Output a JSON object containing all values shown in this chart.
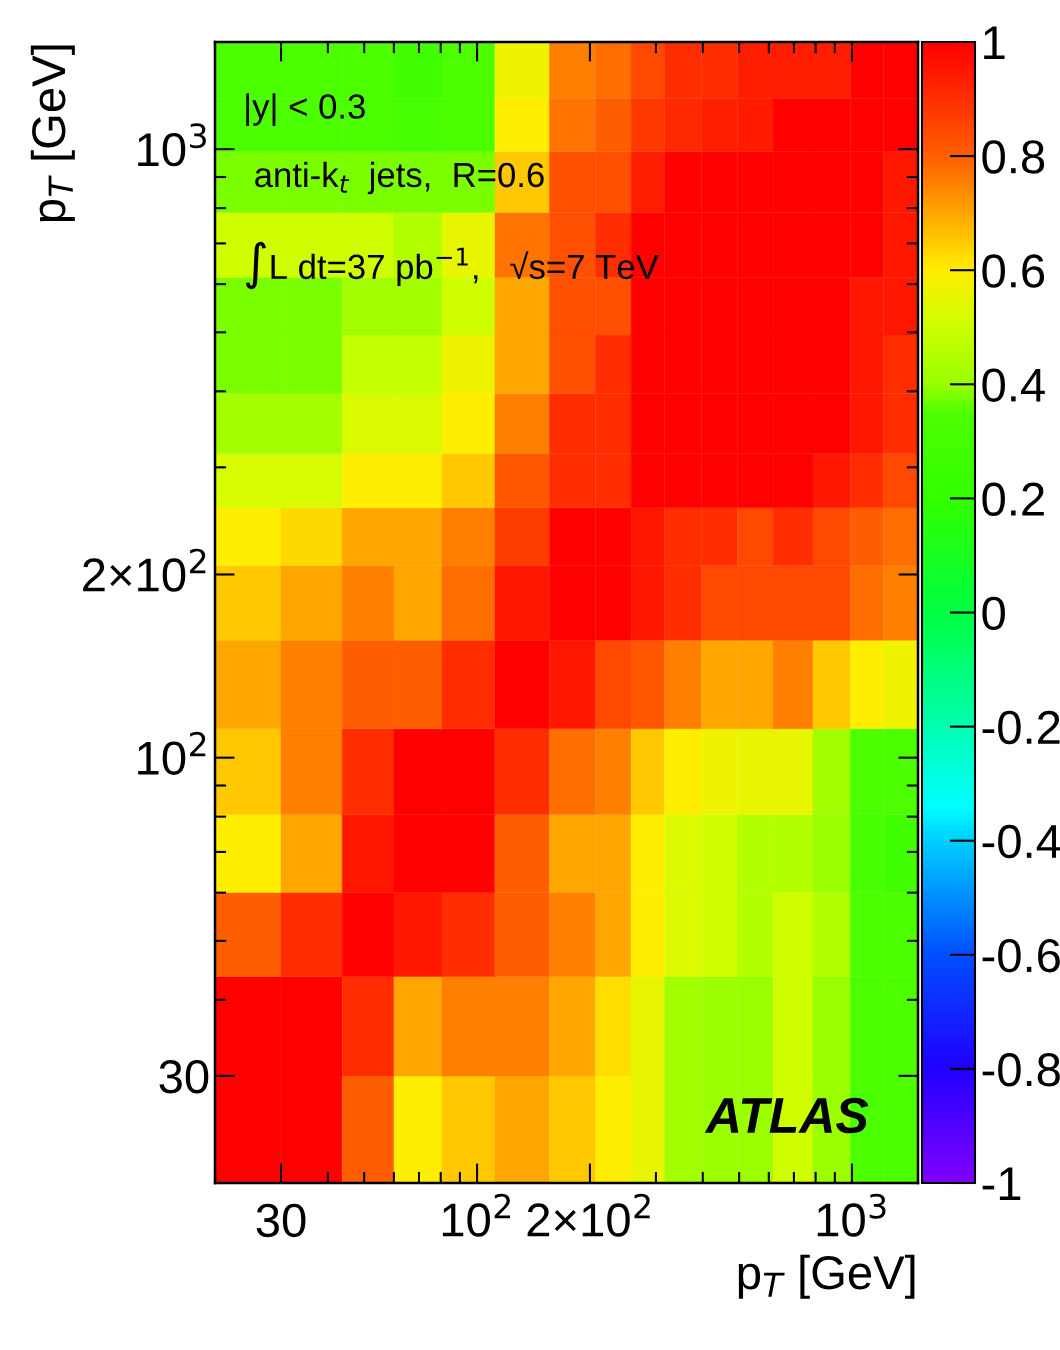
{
  "chart_data": {
    "type": "heatmap",
    "x": [
      24.5,
      36.7,
      52,
      69.3,
      93.8,
      132.7,
      183.3,
      233.6,
      283.9,
      352.1,
      447.2,
      547.7,
      692.8,
      894.4,
      1095.4,
      1341.6
    ],
    "y": [
      1341.6,
      1095.4,
      894.4,
      692.8,
      547.7,
      447.2,
      352.1,
      283.9,
      233.6,
      183.3,
      132.7,
      93.8,
      69.3,
      52,
      36.7,
      24.5
    ],
    "cells": [
      [
        0.35,
        0.35,
        0.35,
        0.28,
        0.35,
        0.57,
        0.75,
        0.78,
        0.85,
        0.9,
        0.9,
        0.93,
        0.93,
        0.93,
        1.0,
        1.0
      ],
      [
        0.35,
        0.35,
        0.35,
        0.32,
        0.35,
        0.6,
        0.77,
        0.8,
        0.88,
        0.91,
        0.93,
        0.94,
        1.0,
        1.0,
        1.0,
        1.0
      ],
      [
        0.38,
        0.38,
        0.38,
        0.38,
        0.38,
        0.65,
        0.83,
        0.83,
        0.93,
        1.0,
        1.0,
        1.0,
        1.0,
        1.0,
        1.0,
        0.95
      ],
      [
        0.5,
        0.5,
        0.5,
        0.45,
        0.55,
        0.77,
        0.83,
        0.9,
        1.0,
        1.0,
        1.0,
        1.0,
        1.0,
        1.0,
        1.0,
        0.95
      ],
      [
        0.38,
        0.38,
        0.42,
        0.42,
        0.5,
        0.7,
        0.83,
        0.83,
        1.0,
        1.0,
        1.0,
        1.0,
        1.0,
        1.0,
        0.95,
        0.95
      ],
      [
        0.38,
        0.38,
        0.48,
        0.48,
        0.57,
        0.7,
        0.83,
        0.9,
        1.0,
        1.0,
        1.0,
        1.0,
        1.0,
        1.0,
        0.95,
        0.9
      ],
      [
        0.42,
        0.42,
        0.53,
        0.53,
        0.6,
        0.75,
        0.9,
        0.9,
        1.0,
        1.0,
        1.0,
        1.0,
        1.0,
        1.0,
        0.95,
        0.9
      ],
      [
        0.52,
        0.52,
        0.6,
        0.6,
        0.65,
        0.82,
        0.9,
        0.9,
        1.0,
        1.0,
        1.0,
        1.0,
        1.0,
        0.95,
        0.9,
        0.85
      ],
      [
        0.6,
        0.63,
        0.7,
        0.7,
        0.75,
        0.87,
        1.0,
        1.0,
        0.95,
        0.9,
        0.9,
        0.85,
        0.9,
        0.85,
        0.8,
        0.78
      ],
      [
        0.65,
        0.7,
        0.75,
        0.7,
        0.78,
        0.95,
        1.0,
        1.0,
        0.95,
        0.9,
        0.85,
        0.85,
        0.85,
        0.85,
        0.78,
        0.75
      ],
      [
        0.7,
        0.75,
        0.8,
        0.8,
        0.9,
        1.0,
        0.95,
        0.85,
        0.82,
        0.75,
        0.7,
        0.7,
        0.75,
        0.65,
        0.6,
        0.57
      ],
      [
        0.65,
        0.75,
        0.9,
        1.0,
        1.0,
        0.9,
        0.78,
        0.75,
        0.65,
        0.6,
        0.57,
        0.55,
        0.55,
        0.42,
        0.35,
        0.35
      ],
      [
        0.6,
        0.7,
        0.95,
        1.0,
        1.0,
        0.8,
        0.7,
        0.7,
        0.6,
        0.53,
        0.5,
        0.45,
        0.45,
        0.4,
        0.32,
        0.28
      ],
      [
        0.8,
        0.9,
        1.0,
        0.95,
        0.9,
        0.8,
        0.75,
        0.7,
        0.6,
        0.53,
        0.5,
        0.45,
        0.5,
        0.45,
        0.35,
        0.35
      ],
      [
        1.0,
        1.0,
        0.9,
        0.7,
        0.75,
        0.75,
        0.7,
        0.62,
        0.55,
        0.42,
        0.4,
        0.4,
        0.5,
        0.4,
        0.35,
        0.35
      ],
      [
        1.0,
        1.0,
        0.8,
        0.6,
        0.65,
        0.7,
        0.65,
        0.6,
        0.55,
        0.42,
        0.4,
        0.4,
        0.5,
        0.4,
        0.35,
        0.35
      ]
    ],
    "xlim": [
      20,
      1500
    ],
    "ylim": [
      20,
      1500
    ],
    "log": "xy",
    "xticks": [
      30,
      {
        "value": 100,
        "label": "10$^{2}$"
      },
      {
        "value": 200,
        "label": "2×10$^{2}$"
      },
      {
        "value": 1000,
        "label": "10$^{3}$"
      }
    ],
    "yticks": [
      30,
      {
        "value": 100,
        "label": "10$^{2}$"
      },
      {
        "value": 200,
        "label": "2×10$^{2}$"
      },
      {
        "value": 1000,
        "label": "10$^{3}$"
      }
    ],
    "clim": [
      -1,
      1
    ],
    "cticks": [
      -1,
      -0.8,
      -0.6,
      -0.4,
      -0.2,
      0,
      0.2,
      0.4,
      0.6,
      0.8,
      1
    ],
    "xlabel": "p$_{T}$ [GeV]",
    "ylabel": "p$_{T}$ [GeV]",
    "annotations": [
      "|y| < 0.3",
      "anti-k$_{t}$  jets,  R=0.6",
      "∫L dt=37 pb$^{−1}$,   √s=7 TeV",
      "ATLAS"
    ],
    "grid": false
  }
}
